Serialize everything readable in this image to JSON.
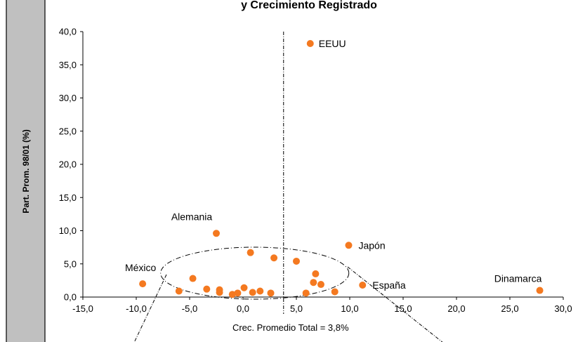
{
  "chart_data": {
    "type": "scatter",
    "title": "y Crecimiento Registrado",
    "xlabel": "",
    "ylabel": "Part. Prom. 98/01 (%)",
    "xlim": [
      -15,
      30
    ],
    "ylim": [
      0,
      40
    ],
    "x_ticks": [
      "-15,0",
      "-10,0",
      "-5,0",
      "0,0",
      "5,0",
      "10,0",
      "15,0",
      "20,0",
      "25,0",
      "30,0"
    ],
    "y_ticks": [
      "0,0",
      "5,0",
      "10,0",
      "15,0",
      "20,0",
      "25,0",
      "30,0",
      "35,0",
      "40,0"
    ],
    "average_line": {
      "x": 3.8,
      "label": "Crec. Promedio Total = 3,8%"
    },
    "marker_color": "#F47920",
    "points": [
      {
        "x": 6.3,
        "y": 38.2,
        "label": "EEUU"
      },
      {
        "x": -2.5,
        "y": 9.6,
        "label": "Alemania"
      },
      {
        "x": 9.9,
        "y": 7.8,
        "label": "Japón"
      },
      {
        "x": -9.4,
        "y": 2.0,
        "label": "México"
      },
      {
        "x": 11.2,
        "y": 1.8,
        "label": "España"
      },
      {
        "x": 27.8,
        "y": 1.0,
        "label": "Dinamarca"
      },
      {
        "x": 0.7,
        "y": 6.7,
        "label": ""
      },
      {
        "x": 2.9,
        "y": 5.9,
        "label": ""
      },
      {
        "x": 5.0,
        "y": 5.4,
        "label": ""
      },
      {
        "x": -4.7,
        "y": 2.8,
        "label": ""
      },
      {
        "x": 6.8,
        "y": 3.5,
        "label": ""
      },
      {
        "x": 6.6,
        "y": 2.2,
        "label": ""
      },
      {
        "x": 7.3,
        "y": 1.9,
        "label": ""
      },
      {
        "x": -6.0,
        "y": 0.9,
        "label": ""
      },
      {
        "x": -3.4,
        "y": 1.2,
        "label": ""
      },
      {
        "x": -2.2,
        "y": 1.1,
        "label": ""
      },
      {
        "x": -2.2,
        "y": 0.7,
        "label": ""
      },
      {
        "x": -1.0,
        "y": 0.4,
        "label": ""
      },
      {
        "x": -0.5,
        "y": 0.6,
        "label": ""
      },
      {
        "x": 0.1,
        "y": 1.4,
        "label": ""
      },
      {
        "x": 0.9,
        "y": 0.7,
        "label": ""
      },
      {
        "x": 1.6,
        "y": 0.9,
        "label": ""
      },
      {
        "x": 2.6,
        "y": 0.6,
        "label": ""
      },
      {
        "x": 5.9,
        "y": 0.6,
        "label": ""
      },
      {
        "x": 8.6,
        "y": 0.8,
        "label": ""
      }
    ]
  }
}
